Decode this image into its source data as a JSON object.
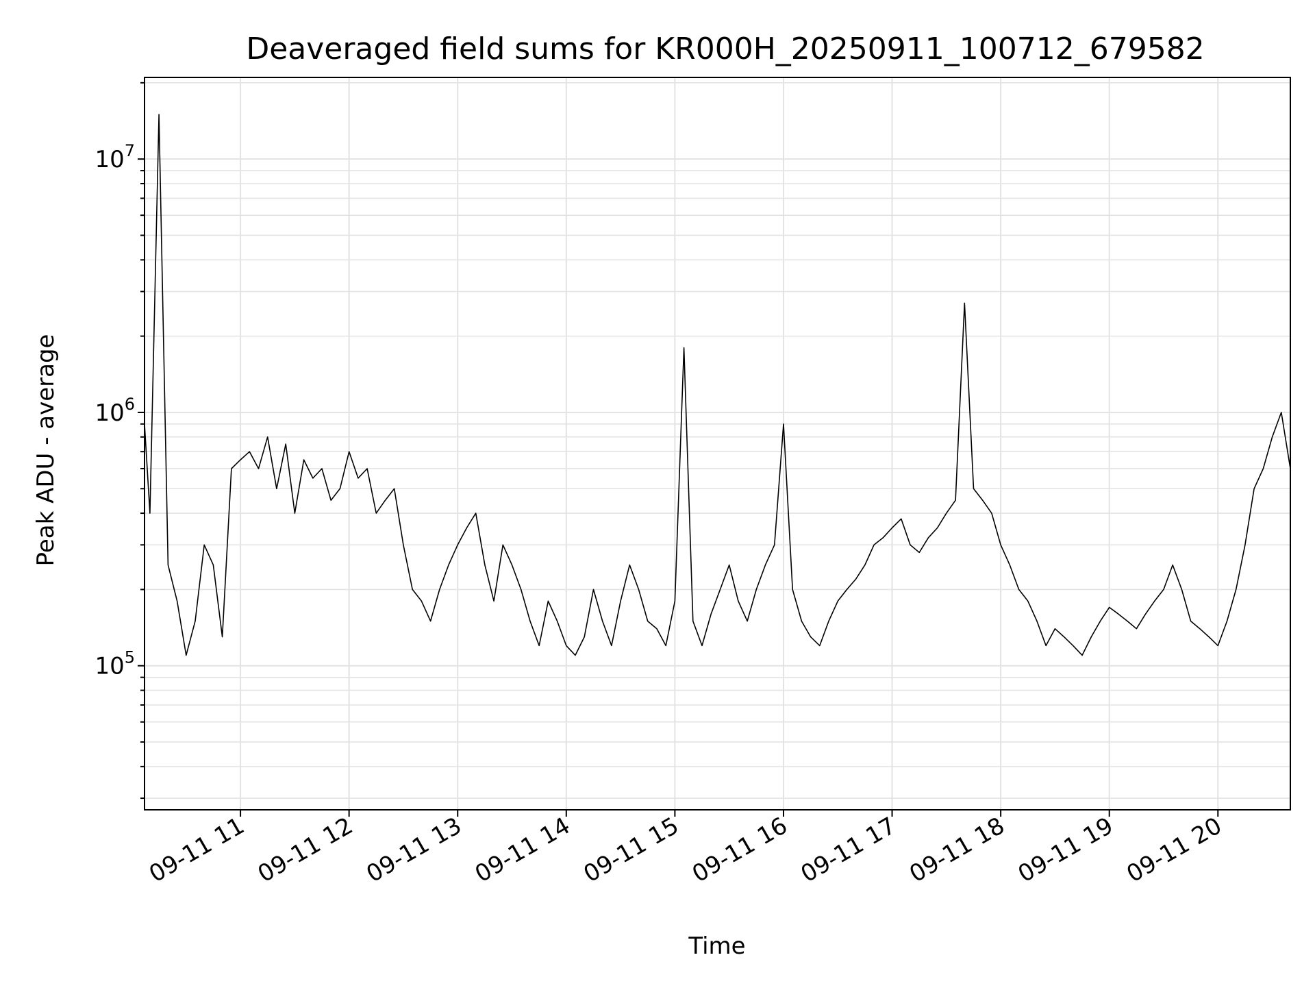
{
  "chart_data": {
    "type": "line",
    "title": "Deaveraged field sums for KR000H_20250911_100712_679582",
    "xlabel": "Time",
    "ylabel": "Peak ADU - average",
    "y_scale": "log",
    "ylim": [
      27000,
      21000000
    ],
    "xlim": [
      "2025-09-11T10:07",
      "2025-09-11T20:40"
    ],
    "x_ticks": [
      {
        "value": "2025-09-11T11:00",
        "label": "09-11 11"
      },
      {
        "value": "2025-09-11T12:00",
        "label": "09-11 12"
      },
      {
        "value": "2025-09-11T13:00",
        "label": "09-11 13"
      },
      {
        "value": "2025-09-11T14:00",
        "label": "09-11 14"
      },
      {
        "value": "2025-09-11T15:00",
        "label": "09-11 15"
      },
      {
        "value": "2025-09-11T16:00",
        "label": "09-11 16"
      },
      {
        "value": "2025-09-11T17:00",
        "label": "09-11 17"
      },
      {
        "value": "2025-09-11T18:00",
        "label": "09-11 18"
      },
      {
        "value": "2025-09-11T19:00",
        "label": "09-11 19"
      },
      {
        "value": "2025-09-11T20:00",
        "label": "09-11 20"
      }
    ],
    "y_ticks": [
      {
        "value": 100000,
        "base": "10",
        "exp": "5"
      },
      {
        "value": 1000000,
        "base": "10",
        "exp": "6"
      },
      {
        "value": 10000000,
        "base": "10",
        "exp": "7"
      }
    ],
    "grid": true,
    "series": [
      {
        "color": "#000000",
        "x": [
          "2025-09-11T10:07",
          "2025-09-11T10:10",
          "2025-09-11T10:15",
          "2025-09-11T10:20",
          "2025-09-11T10:25",
          "2025-09-11T10:30",
          "2025-09-11T10:35",
          "2025-09-11T10:40",
          "2025-09-11T10:45",
          "2025-09-11T10:50",
          "2025-09-11T10:55",
          "2025-09-11T11:00",
          "2025-09-11T11:05",
          "2025-09-11T11:10",
          "2025-09-11T11:15",
          "2025-09-11T11:20",
          "2025-09-11T11:25",
          "2025-09-11T11:30",
          "2025-09-11T11:35",
          "2025-09-11T11:40",
          "2025-09-11T11:45",
          "2025-09-11T11:50",
          "2025-09-11T11:55",
          "2025-09-11T12:00",
          "2025-09-11T12:05",
          "2025-09-11T12:10",
          "2025-09-11T12:15",
          "2025-09-11T12:20",
          "2025-09-11T12:25",
          "2025-09-11T12:30",
          "2025-09-11T12:35",
          "2025-09-11T12:40",
          "2025-09-11T12:45",
          "2025-09-11T12:50",
          "2025-09-11T12:55",
          "2025-09-11T13:00",
          "2025-09-11T13:05",
          "2025-09-11T13:10",
          "2025-09-11T13:15",
          "2025-09-11T13:20",
          "2025-09-11T13:25",
          "2025-09-11T13:30",
          "2025-09-11T13:35",
          "2025-09-11T13:40",
          "2025-09-11T13:45",
          "2025-09-11T13:50",
          "2025-09-11T13:55",
          "2025-09-11T14:00",
          "2025-09-11T14:05",
          "2025-09-11T14:10",
          "2025-09-11T14:15",
          "2025-09-11T14:20",
          "2025-09-11T14:25",
          "2025-09-11T14:30",
          "2025-09-11T14:35",
          "2025-09-11T14:40",
          "2025-09-11T14:45",
          "2025-09-11T14:50",
          "2025-09-11T14:55",
          "2025-09-11T15:00",
          "2025-09-11T15:05",
          "2025-09-11T15:10",
          "2025-09-11T15:15",
          "2025-09-11T15:20",
          "2025-09-11T15:25",
          "2025-09-11T15:30",
          "2025-09-11T15:35",
          "2025-09-11T15:40",
          "2025-09-11T15:45",
          "2025-09-11T15:50",
          "2025-09-11T15:55",
          "2025-09-11T16:00",
          "2025-09-11T16:05",
          "2025-09-11T16:10",
          "2025-09-11T16:15",
          "2025-09-11T16:20",
          "2025-09-11T16:25",
          "2025-09-11T16:30",
          "2025-09-11T16:35",
          "2025-09-11T16:40",
          "2025-09-11T16:45",
          "2025-09-11T16:50",
          "2025-09-11T16:55",
          "2025-09-11T17:00",
          "2025-09-11T17:05",
          "2025-09-11T17:10",
          "2025-09-11T17:15",
          "2025-09-11T17:20",
          "2025-09-11T17:25",
          "2025-09-11T17:30",
          "2025-09-11T17:35",
          "2025-09-11T17:40",
          "2025-09-11T17:45",
          "2025-09-11T17:50",
          "2025-09-11T17:55",
          "2025-09-11T18:00",
          "2025-09-11T18:05",
          "2025-09-11T18:10",
          "2025-09-11T18:15",
          "2025-09-11T18:20",
          "2025-09-11T18:25",
          "2025-09-11T18:30",
          "2025-09-11T18:35",
          "2025-09-11T18:40",
          "2025-09-11T18:45",
          "2025-09-11T18:50",
          "2025-09-11T18:55",
          "2025-09-11T19:00",
          "2025-09-11T19:05",
          "2025-09-11T19:10",
          "2025-09-11T19:15",
          "2025-09-11T19:20",
          "2025-09-11T19:25",
          "2025-09-11T19:30",
          "2025-09-11T19:35",
          "2025-09-11T19:40",
          "2025-09-11T19:45",
          "2025-09-11T19:50",
          "2025-09-11T19:55",
          "2025-09-11T20:00",
          "2025-09-11T20:05",
          "2025-09-11T20:10",
          "2025-09-11T20:15",
          "2025-09-11T20:20",
          "2025-09-11T20:25",
          "2025-09-11T20:30",
          "2025-09-11T20:35",
          "2025-09-11T20:40"
        ],
        "values": [
          900000,
          400000,
          15000000,
          250000,
          180000,
          110000,
          150000,
          300000,
          250000,
          130000,
          600000,
          650000,
          700000,
          600000,
          800000,
          500000,
          750000,
          400000,
          650000,
          550000,
          600000,
          450000,
          500000,
          700000,
          550000,
          600000,
          400000,
          450000,
          500000,
          300000,
          200000,
          180000,
          150000,
          200000,
          250000,
          300000,
          350000,
          400000,
          250000,
          180000,
          300000,
          250000,
          200000,
          150000,
          120000,
          180000,
          150000,
          120000,
          110000,
          130000,
          200000,
          150000,
          120000,
          180000,
          250000,
          200000,
          150000,
          140000,
          120000,
          180000,
          1800000,
          150000,
          120000,
          160000,
          200000,
          250000,
          180000,
          150000,
          200000,
          250000,
          300000,
          900000,
          200000,
          150000,
          130000,
          120000,
          150000,
          180000,
          200000,
          220000,
          250000,
          300000,
          320000,
          350000,
          380000,
          300000,
          280000,
          320000,
          350000,
          400000,
          450000,
          2700000,
          500000,
          450000,
          400000,
          300000,
          250000,
          200000,
          180000,
          150000,
          120000,
          140000,
          130000,
          120000,
          110000,
          130000,
          150000,
          170000,
          160000,
          150000,
          140000,
          160000,
          180000,
          200000,
          250000,
          200000,
          150000,
          140000,
          130000,
          120000,
          150000,
          200000,
          300000,
          500000,
          600000,
          800000,
          1000000,
          600000
        ]
      }
    ]
  }
}
